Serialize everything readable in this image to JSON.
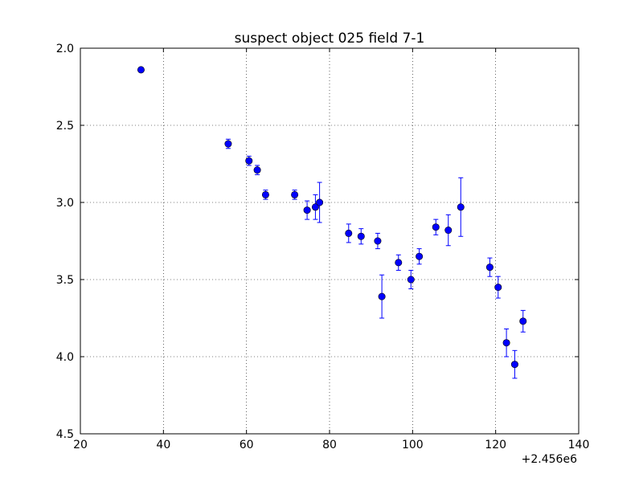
{
  "chart_data": {
    "type": "scatter",
    "title": "suspect object 025 field 7-1",
    "xlabel": "",
    "ylabel": "",
    "xlim": [
      20,
      140
    ],
    "ylim": [
      2.0,
      4.5
    ],
    "y_inverted": true,
    "x_offset_label": "+2.456e6",
    "x_ticks": [
      "20",
      "40",
      "60",
      "80",
      "100",
      "120",
      "140"
    ],
    "y_ticks": [
      "2.0",
      "2.5",
      "3.0",
      "3.5",
      "4.0",
      "4.5"
    ],
    "grid": true,
    "legend": "none",
    "marker_color": "#0000ff",
    "series": [
      {
        "x": [
          34.6,
          55.6,
          60.6,
          62.6,
          64.6,
          71.6,
          74.6,
          76.6,
          77.6,
          84.6,
          87.6,
          91.6,
          92.6,
          96.6,
          99.6,
          101.6,
          105.6,
          108.6,
          111.6,
          118.6,
          120.6,
          122.6,
          124.6,
          126.6
        ],
        "y": [
          2.14,
          2.62,
          2.73,
          2.79,
          2.95,
          2.95,
          3.05,
          3.03,
          3.0,
          3.2,
          3.22,
          3.25,
          3.61,
          3.39,
          3.5,
          3.35,
          3.16,
          3.18,
          3.03,
          3.42,
          3.55,
          3.91,
          4.05,
          3.77
        ],
        "err": [
          0.01,
          0.03,
          0.03,
          0.03,
          0.03,
          0.03,
          0.06,
          0.08,
          0.13,
          0.06,
          0.05,
          0.05,
          0.14,
          0.05,
          0.06,
          0.05,
          0.05,
          0.1,
          0.19,
          0.06,
          0.07,
          0.09,
          0.09,
          0.07
        ]
      }
    ]
  }
}
